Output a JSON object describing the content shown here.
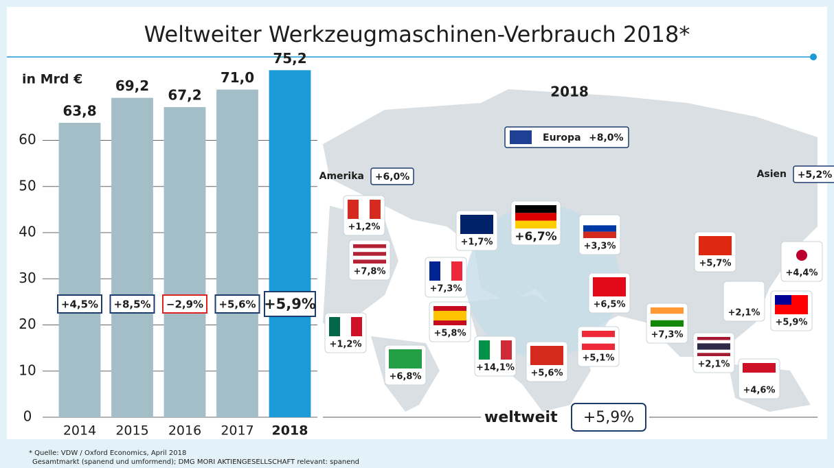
{
  "chart_data": {
    "type": "bar",
    "title": "Weltweiter Werkzeugmaschinen-Verbrauch 2018*",
    "ylabel": "in Mrd €",
    "categories": [
      "2014",
      "2015",
      "2016",
      "2017",
      "2018"
    ],
    "values": [
      63.8,
      69.2,
      67.2,
      71.0,
      75.2
    ],
    "value_labels": [
      "63,8",
      "69,2",
      "67,2",
      "71,0",
      "75,2"
    ],
    "growth_labels": [
      "+4,5%",
      "+8,5%",
      "−2,9%",
      "+5,6%",
      "+5,9%"
    ],
    "colors": [
      "#a4bec8",
      "#a4bec8",
      "#a4bec8",
      "#a4bec8",
      "#1a9ad6"
    ],
    "ylim": [
      0,
      80
    ],
    "yticks": [
      0,
      10,
      20,
      30,
      40,
      50,
      60
    ],
    "grid": true
  },
  "map": {
    "title": "2018",
    "regions": [
      {
        "name": "Europa",
        "label": "+8,0%"
      },
      {
        "name": "Amerika",
        "label": "+6,0%"
      },
      {
        "name": "Asien",
        "label": "+5,2%"
      }
    ],
    "countries": [
      "+1,2%",
      "+7,8%",
      "+1,2%",
      "+6,8%",
      "+1,7%",
      "+6,7%",
      "+3,3%",
      "+7,3%",
      "+5,8%",
      "+14,1%",
      "+5,6%",
      "+6,5%",
      "+5,1%",
      "+7,3%",
      "+5,7%",
      "+4,4%",
      "+2,1%",
      "+5,9%",
      "+2,1%",
      "+4,6%"
    ],
    "world_label": "weltweit",
    "world_value": "+5,9%"
  },
  "footnote": [
    "* Quelle: VDW / Oxford Economics, April 2018",
    "Gesamtmarkt (spanend und umformend); DMG MORI AKTIENGESELLSCHAFT relevant: spanend"
  ]
}
